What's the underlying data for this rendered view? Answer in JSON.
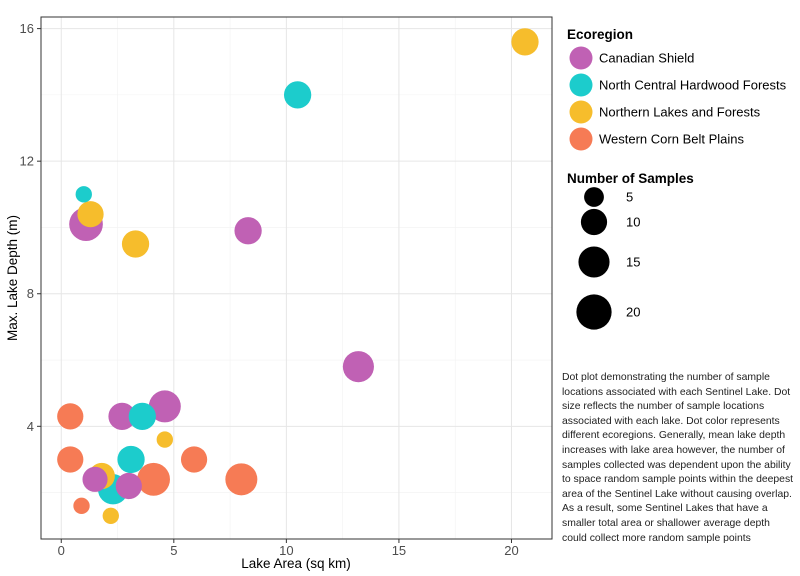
{
  "chart_data": {
    "type": "scatter",
    "xlabel": "Lake Area (sq km)",
    "ylabel": "Max. Lake Depth (m)",
    "xlim": [
      -0.9,
      21.8
    ],
    "ylim": [
      0.6,
      16.35
    ],
    "xticks": [
      0,
      5,
      10,
      15,
      20
    ],
    "yticks": [
      4,
      8,
      12,
      16
    ],
    "grid": true,
    "color_legend": {
      "title": "Ecoregion",
      "placement": "right-top",
      "entries": [
        {
          "name": "Canadian Shield",
          "color": "#c061b4"
        },
        {
          "name": "North Central Hardwood Forests",
          "color": "#1ccccc"
        },
        {
          "name": "Northern Lakes and Forests",
          "color": "#f6bd2c"
        },
        {
          "name": "Western Corn Belt Plains",
          "color": "#f67b55"
        }
      ]
    },
    "size_legend": {
      "title": "Number of Samples",
      "placement": "right",
      "values": [
        5,
        10,
        15,
        20
      ]
    },
    "series": [
      {
        "name": "Canadian Shield",
        "color": "#c061b4",
        "points": [
          {
            "x": 1.1,
            "y": 10.1,
            "samples": 18
          },
          {
            "x": 8.3,
            "y": 9.9,
            "samples": 11
          },
          {
            "x": 13.2,
            "y": 5.8,
            "samples": 15
          },
          {
            "x": 4.6,
            "y": 4.6,
            "samples": 16
          },
          {
            "x": 2.7,
            "y": 4.3,
            "samples": 11
          },
          {
            "x": 1.5,
            "y": 2.4,
            "samples": 9
          },
          {
            "x": 3.0,
            "y": 2.2,
            "samples": 10
          }
        ]
      },
      {
        "name": "North Central Hardwood Forests",
        "color": "#1ccccc",
        "points": [
          {
            "x": 10.5,
            "y": 14.0,
            "samples": 11
          },
          {
            "x": 1.0,
            "y": 11.0,
            "samples": 3
          },
          {
            "x": 3.6,
            "y": 4.3,
            "samples": 11
          },
          {
            "x": 3.1,
            "y": 3.0,
            "samples": 11
          },
          {
            "x": 2.3,
            "y": 2.1,
            "samples": 14
          }
        ]
      },
      {
        "name": "Northern Lakes and Forests",
        "color": "#f6bd2c",
        "points": [
          {
            "x": 20.6,
            "y": 15.6,
            "samples": 11
          },
          {
            "x": 1.3,
            "y": 10.4,
            "samples": 10
          },
          {
            "x": 3.3,
            "y": 9.5,
            "samples": 11
          },
          {
            "x": 4.6,
            "y": 3.6,
            "samples": 3
          },
          {
            "x": 1.8,
            "y": 2.5,
            "samples": 10
          },
          {
            "x": 2.2,
            "y": 1.3,
            "samples": 3
          }
        ]
      },
      {
        "name": "Western Corn Belt Plains",
        "color": "#f67b55",
        "points": [
          {
            "x": 0.4,
            "y": 4.3,
            "samples": 10
          },
          {
            "x": 0.4,
            "y": 3.0,
            "samples": 10
          },
          {
            "x": 5.9,
            "y": 3.0,
            "samples": 10
          },
          {
            "x": 4.1,
            "y": 2.4,
            "samples": 17
          },
          {
            "x": 8.0,
            "y": 2.4,
            "samples": 16
          },
          {
            "x": 0.9,
            "y": 1.6,
            "samples": 3
          }
        ]
      }
    ]
  },
  "caption": "Dot plot demonstrating the number of sample locations associated with each Sentinel Lake. Dot size reflects the number of sample locations associated with each lake. Dot color represents different ecoregions. Generally, mean lake depth increases with lake area however, the number of samples collected was dependent upon the ability to space random sample points within the deepest area of the Sentinel Lake without causing overlap. As a result, some Sentinel Lakes that have a smaller total area or shallower average depth could collect more random sample points"
}
